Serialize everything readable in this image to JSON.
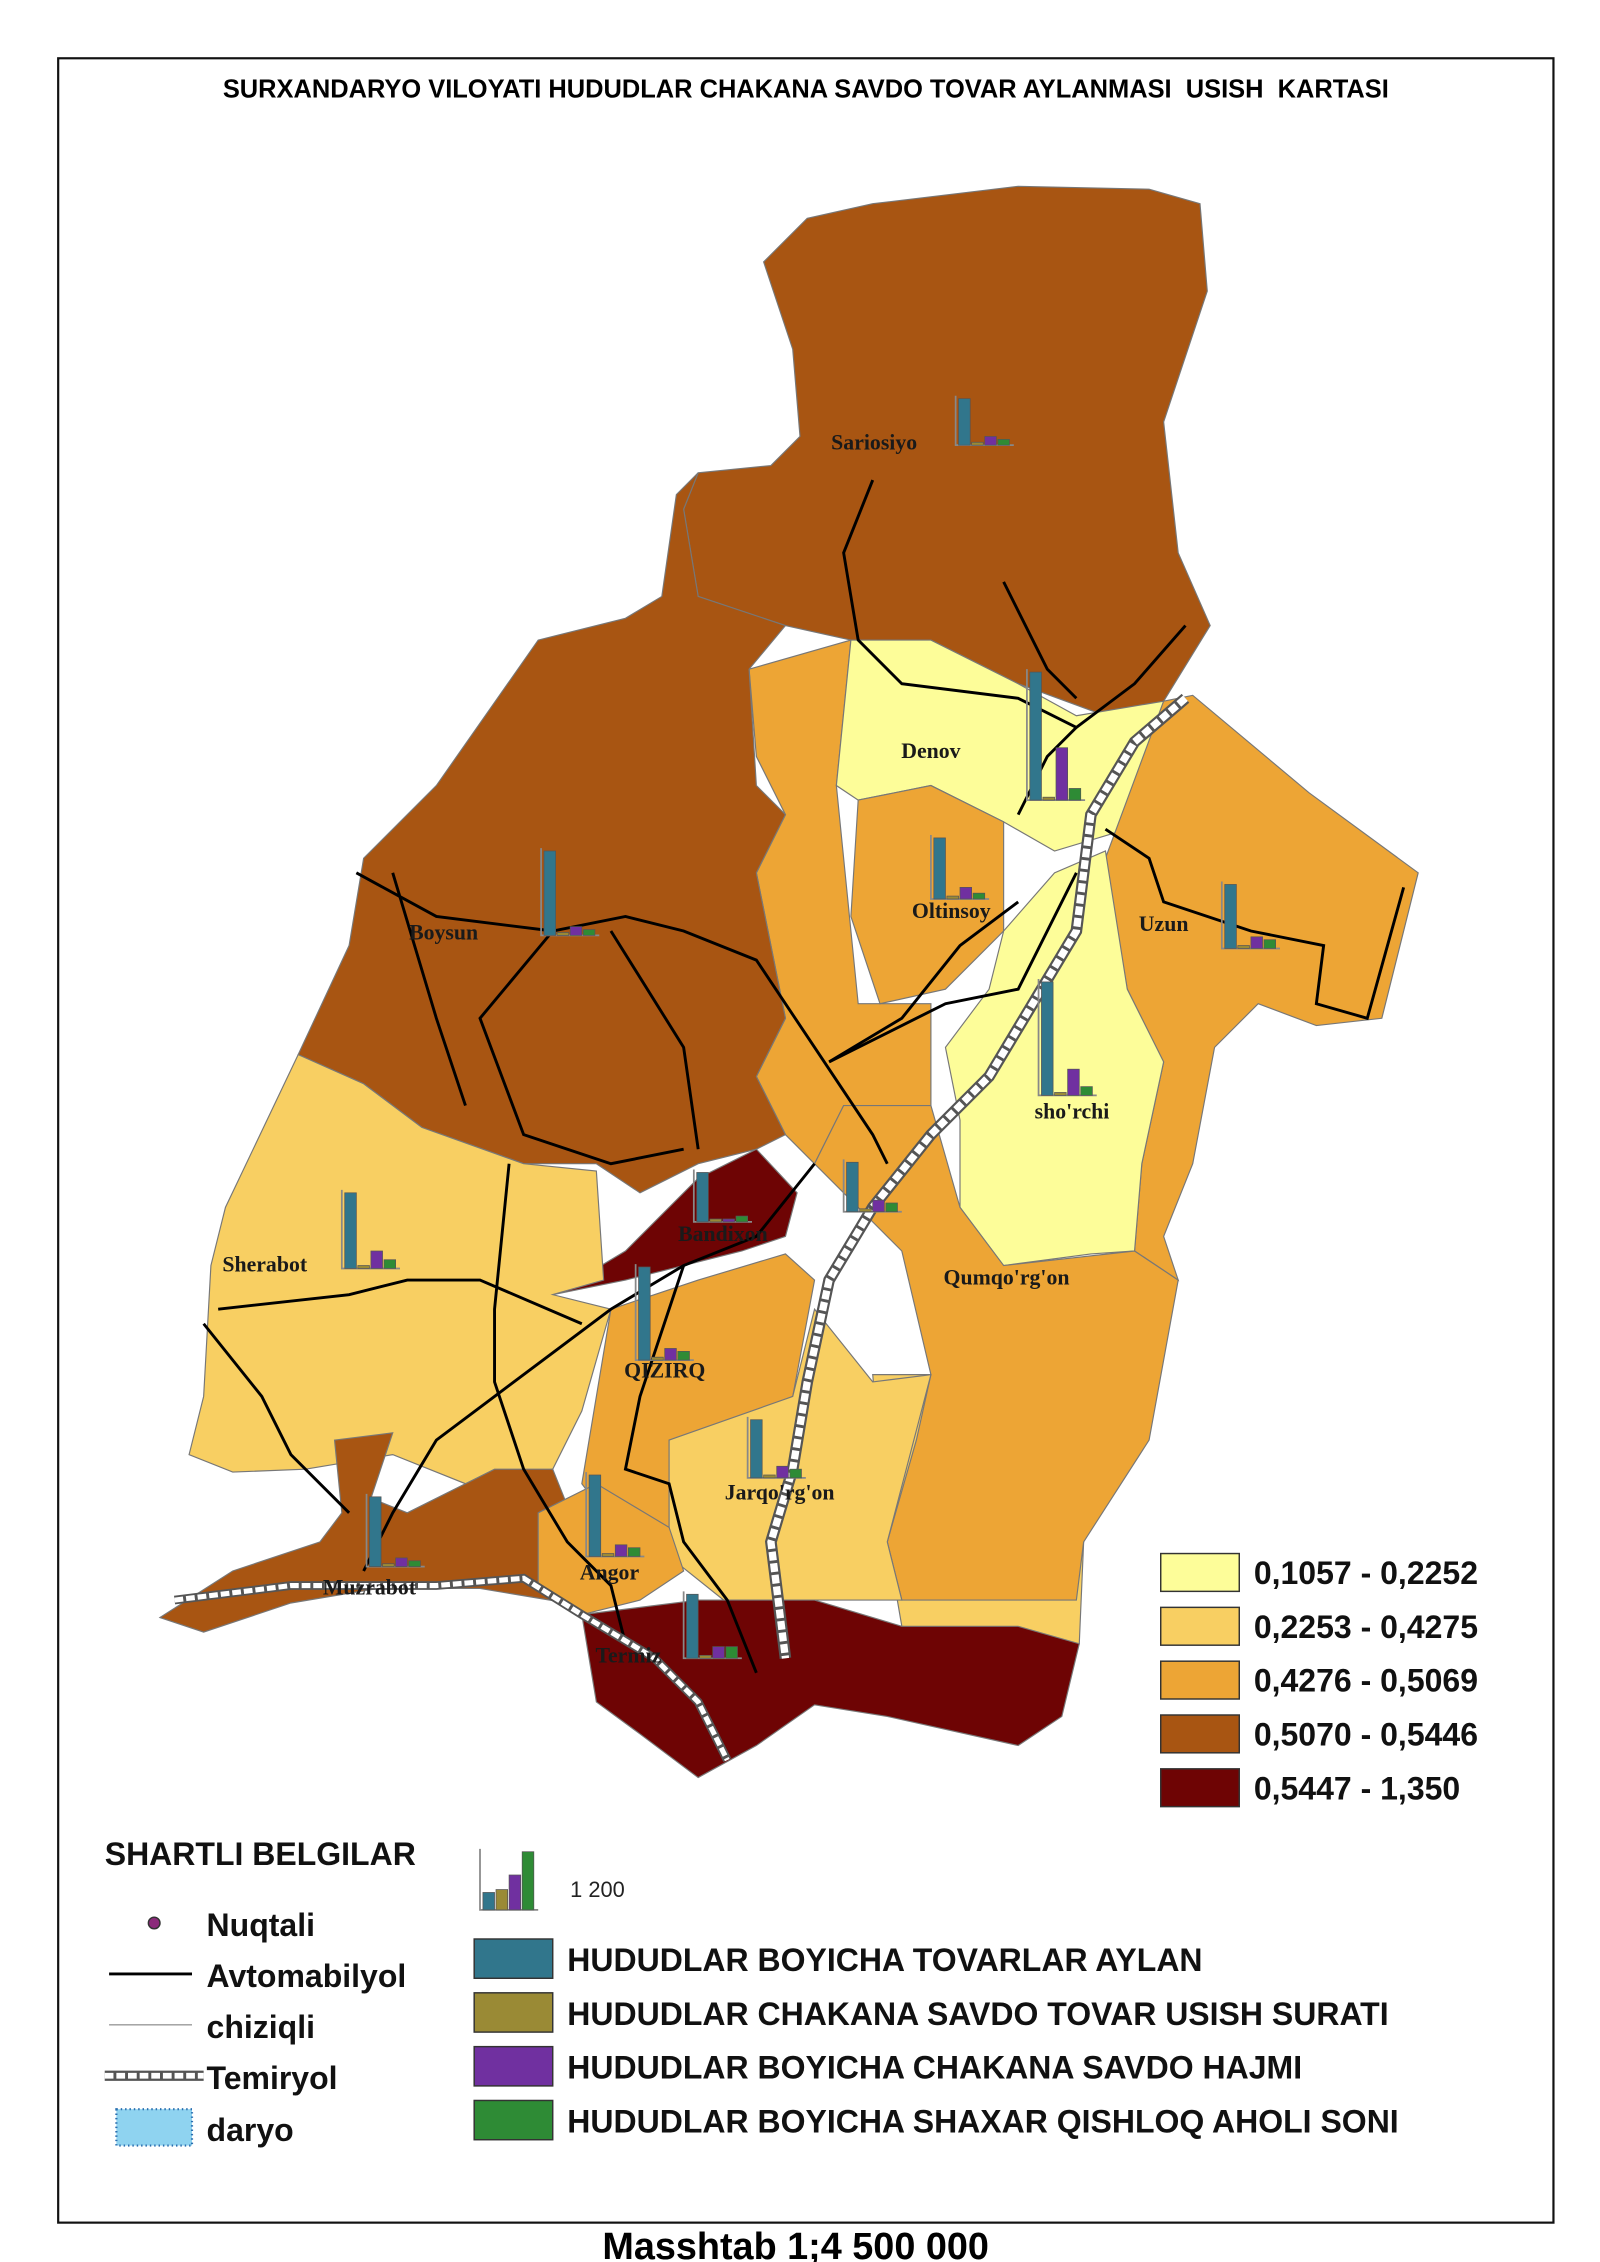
{
  "title": "SURXANDARYO VILOYATI HUDUDLAR CHAKANA SAVDO TOVAR AYLANMASI  USISH  KARTASI",
  "classes": [
    {
      "label": "0,1057 - 0,2252",
      "color": "#fdfd99"
    },
    {
      "label": "0,2253 - 0,4275",
      "color": "#f8cf62"
    },
    {
      "label": "0,4276 - 0,5069",
      "color": "#eda535"
    },
    {
      "label": "0,5070 - 0,5446",
      "color": "#a85512"
    },
    {
      "label": "0,5447 - 1,350",
      "color": "#6e0404"
    }
  ],
  "indicators": [
    {
      "name": "HUDUDLAR BOYICHA TOVARLAR AYLAN",
      "color": "#31768c"
    },
    {
      "name": "HUDUDLAR CHAKANA SAVDO TOVAR USISH SURATI",
      "color": "#9a8a35"
    },
    {
      "name": "HUDUDLAR BOYICHA CHAKANA SAVDO HAJMI",
      "color": "#7030a0"
    },
    {
      "name": "HUDUDLAR BOYICHA SHAXAR QISHLOQ AHOLI SONI",
      "color": "#2e8b35"
    }
  ],
  "sample_chart": {
    "values": [
      360,
      420,
      720,
      1200
    ],
    "label": {
      "value": 1200,
      "label": "1 200"
    }
  },
  "districts": [
    {
      "name": "Sariosiyo",
      "color": "#a85512",
      "values": [
        960,
        60,
        180,
        120
      ]
    },
    {
      "name": "Denov",
      "color": "#fdfd99",
      "values": [
        2640,
        60,
        1080,
        240
      ]
    },
    {
      "name": "Boysun",
      "color": "#a85512",
      "values": [
        1740,
        60,
        180,
        120
      ]
    },
    {
      "name": "Oltinsoy",
      "color": "#eda535",
      "values": [
        1260,
        60,
        240,
        120
      ]
    },
    {
      "name": "Uzun",
      "color": "#eda535",
      "values": [
        1320,
        60,
        240,
        180
      ]
    },
    {
      "name": "sho'rchi",
      "color": "#fdfd99",
      "values": [
        2340,
        60,
        540,
        180
      ]
    },
    {
      "name": "Bandixon",
      "color": "#6e0404",
      "values": [
        1020,
        60,
        60,
        120
      ]
    },
    {
      "name": "Qumqo'rg'on",
      "color": "#eda535",
      "values": [
        1020,
        60,
        240,
        180
      ]
    },
    {
      "name": "Sherabot",
      "color": "#f8cf62",
      "values": [
        1560,
        60,
        360,
        180
      ]
    },
    {
      "name": "QIZIRQ",
      "color": "#eda535",
      "values": [
        1920,
        60,
        240,
        180
      ]
    },
    {
      "name": "Jarqo'rg'on",
      "color": "#f8cf62",
      "values": [
        1200,
        60,
        240,
        180
      ]
    },
    {
      "name": "Muzrabot",
      "color": "#a85512",
      "values": [
        1440,
        60,
        180,
        120
      ]
    },
    {
      "name": "Angor",
      "color": "#eda535",
      "values": [
        1680,
        60,
        240,
        180
      ]
    },
    {
      "name": "Termiz",
      "color": "#6e0404",
      "values": [
        1320,
        60,
        240,
        240
      ]
    }
  ],
  "symbols": {
    "title": "SHARTLI BELGILAR",
    "items": [
      "Nuqtali",
      "Avtomabilyol",
      "chiziqli",
      "Temiryol",
      "daryo"
    ]
  },
  "scale": "Masshtab 1;4 500 000"
}
